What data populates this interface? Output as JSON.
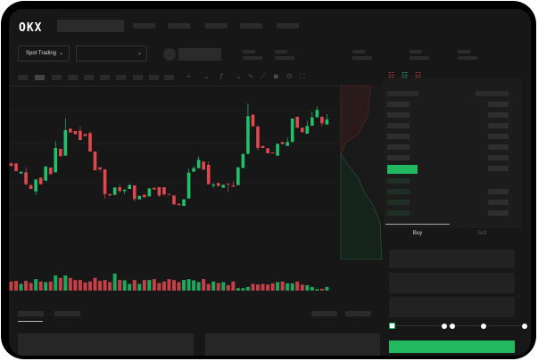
{
  "header": {
    "logo": "OKX"
  },
  "toolbar": {
    "market_selector": "Spot Trading"
  },
  "colors": {
    "up": "#22c06a",
    "down": "#e0484f",
    "background": "#171717",
    "buy_button": "#22b85f"
  },
  "orderbook": {
    "view_icons": [
      "orderbook-both-icon",
      "orderbook-bids-icon",
      "orderbook-asks-icon"
    ]
  },
  "order_form": {
    "tabs": [
      "Buy",
      "Sell"
    ],
    "active_tab": "Buy",
    "leverage_slider_fraction": 0
  },
  "chart_data": {
    "type": "candlestick",
    "candles_ohlc": [
      [
        268,
        272,
        258,
        260
      ],
      [
        268,
        268,
        242,
        242
      ],
      [
        234,
        240,
        234,
        240
      ],
      [
        238,
        255,
        195,
        198
      ],
      [
        195,
        195,
        182,
        182
      ],
      [
        174,
        214,
        162,
        214
      ],
      [
        220,
        220,
        198,
        198
      ],
      [
        210,
        258,
        210,
        258
      ],
      [
        254,
        254,
        232,
        232
      ],
      [
        238,
        343,
        238,
        320
      ],
      [
        317,
        317,
        292,
        292
      ],
      [
        294,
        420,
        294,
        380
      ],
      [
        385,
        385,
        372,
        372
      ],
      [
        377,
        377,
        366,
        366
      ],
      [
        378,
        392,
        347,
        347
      ],
      [
        367,
        367,
        360,
        360
      ],
      [
        370,
        375,
        308,
        308
      ],
      [
        308,
        308,
        245,
        245
      ],
      [
        255,
        255,
        240,
        248
      ],
      [
        248,
        248,
        150,
        165
      ],
      [
        165,
        165,
        160,
        160
      ],
      [
        162,
        187,
        162,
        187
      ],
      [
        188,
        197,
        170,
        175
      ],
      [
        175,
        180,
        165,
        180
      ],
      [
        182,
        200,
        182,
        195
      ],
      [
        194,
        194,
        140,
        148
      ],
      [
        147,
        159,
        147,
        159
      ],
      [
        163,
        163,
        154,
        154
      ],
      [
        157,
        184,
        157,
        184
      ],
      [
        186,
        186,
        180,
        180
      ],
      [
        188,
        188,
        155,
        160
      ],
      [
        188,
        188,
        160,
        164
      ],
      [
        165,
        165,
        162,
        162
      ],
      [
        160,
        160,
        130,
        130
      ],
      [
        132,
        132,
        127,
        127
      ],
      [
        125,
        147,
        125,
        147
      ],
      [
        150,
        250,
        150,
        237
      ],
      [
        240,
        260,
        240,
        252
      ],
      [
        252,
        292,
        252,
        280
      ],
      [
        274,
        274,
        247,
        247
      ],
      [
        263,
        275,
        198,
        198
      ],
      [
        193,
        203,
        185,
        197
      ],
      [
        202,
        202,
        192,
        192
      ],
      [
        186,
        196,
        186,
        196
      ],
      [
        200,
        200,
        172,
        198
      ],
      [
        194,
        208,
        190,
        190
      ],
      [
        195,
        255,
        195,
        255
      ],
      [
        253,
        300,
        253,
        300
      ],
      [
        300,
        470,
        300,
        427
      ],
      [
        432,
        432,
        393,
        393
      ],
      [
        393,
        393,
        312,
        320
      ],
      [
        327,
        327,
        320,
        320
      ],
      [
        319,
        319,
        302,
        302
      ],
      [
        305,
        305,
        303,
        303
      ],
      [
        294,
        334,
        294,
        334
      ],
      [
        340,
        340,
        333,
        333
      ],
      [
        327,
        355,
        327,
        340
      ],
      [
        340,
        419,
        340,
        419
      ],
      [
        425,
        425,
        388,
        388
      ],
      [
        388,
        388,
        373,
        373
      ],
      [
        368,
        412,
        368,
        394
      ],
      [
        395,
        442,
        395,
        423
      ],
      [
        423,
        460,
        423,
        448
      ],
      [
        425,
        425,
        392,
        403
      ],
      [
        399,
        434,
        399,
        416
      ]
    ],
    "volume": [
      30,
      32,
      22,
      32,
      25,
      38,
      30,
      28,
      30,
      50,
      42,
      50,
      42,
      35,
      35,
      27,
      30,
      42,
      32,
      35,
      28,
      56,
      35,
      34,
      22,
      35,
      22,
      35,
      35,
      38,
      25,
      30,
      38,
      35,
      28,
      35,
      38,
      34,
      28,
      38,
      22,
      30,
      25,
      28,
      18,
      30,
      8,
      8,
      12,
      22,
      20,
      22,
      20,
      24,
      28,
      30,
      24,
      24,
      30,
      20,
      18,
      12,
      5,
      6,
      12
    ],
    "grid": true,
    "axes_labels": false
  }
}
